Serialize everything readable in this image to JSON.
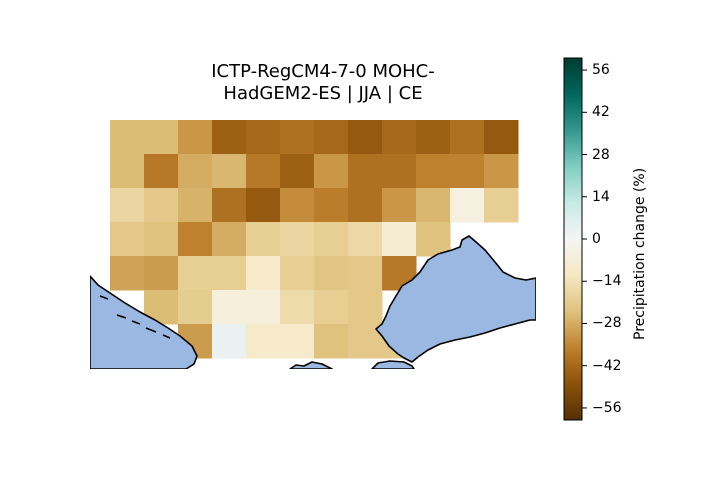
{
  "title": {
    "line1": "ICTP-RegCM4-7-0 MOHC-",
    "line2": "HadGEM2-ES | JJA | CE"
  },
  "colorbar": {
    "label": "Precipitation change (%)",
    "min": -60,
    "max": 60,
    "colormap": "BrBG",
    "ticks": [
      56,
      42,
      28,
      14,
      0,
      -14,
      -28,
      -42,
      -56
    ],
    "tick_labels": [
      "56",
      "42",
      "28",
      "14",
      "0",
      "−14",
      "−28",
      "−42",
      "−56"
    ]
  },
  "colors": {
    "sea": "#9ab8e2",
    "coast": "#000000"
  },
  "chart_data": {
    "type": "heatmap",
    "title": "ICTP-RegCM4-7-0 MOHC-HadGEM2-ES | JJA | CE",
    "colorbar_label": "Precipitation change (%)",
    "value_range": [
      -60,
      60
    ],
    "rows": 7,
    "cols": 12,
    "grid": [
      [
        -25,
        -25,
        -32,
        -44,
        -42,
        -40,
        -42,
        -46,
        -42,
        -44,
        -40,
        -46
      ],
      [
        -25,
        -38,
        -28,
        -26,
        -38,
        -44,
        -32,
        -40,
        -40,
        -36,
        -36,
        -32
      ],
      [
        -18,
        -22,
        -27,
        -40,
        -46,
        -34,
        -37,
        -40,
        -32,
        -26,
        -5,
        -20
      ],
      [
        -22,
        -24,
        -36,
        -28,
        -20,
        -18,
        -20,
        -17,
        -8,
        -24,
        null,
        null
      ],
      [
        -30,
        -31,
        -20,
        -20,
        -10,
        -20,
        -23,
        -22,
        -38,
        null,
        null,
        null
      ],
      [
        null,
        -25,
        -21,
        -6,
        -6,
        -16,
        -20,
        -22,
        null,
        null,
        null,
        null
      ],
      [
        null,
        null,
        -31,
        3,
        -10,
        -10,
        -24,
        -22,
        -22,
        null,
        null,
        null
      ]
    ]
  }
}
